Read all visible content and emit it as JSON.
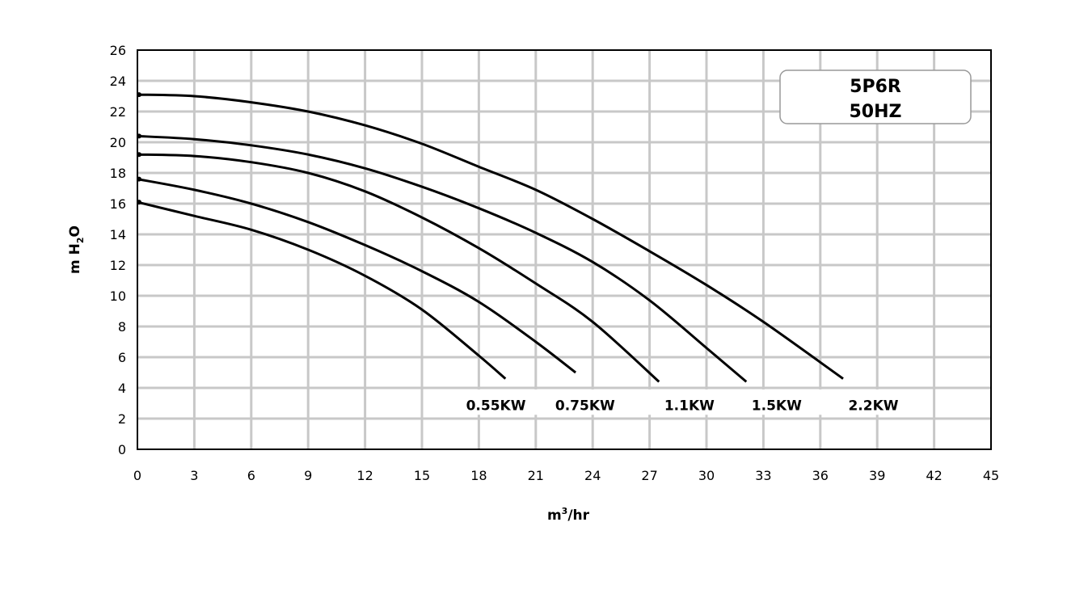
{
  "chart_data": {
    "type": "line",
    "title": "",
    "legend_box": [
      "5P6R",
      "50HZ"
    ],
    "legend_placement": "top-right",
    "xlabel_base": "m",
    "xlabel_sup": "3",
    "xlabel_rest": "/hr",
    "ylabel_base": "m H",
    "ylabel_sub": "2",
    "ylabel_rest": "O",
    "xlim": [
      0,
      45
    ],
    "ylim": [
      0,
      26
    ],
    "x_ticks": [
      0,
      3,
      6,
      9,
      12,
      15,
      18,
      21,
      24,
      27,
      30,
      33,
      36,
      39,
      42,
      45
    ],
    "y_ticks": [
      0,
      2,
      4,
      6,
      8,
      10,
      12,
      14,
      16,
      18,
      20,
      22,
      24,
      26
    ],
    "grid": true,
    "series": [
      {
        "name": "0.55KW",
        "x": [
          0,
          3,
          6,
          9,
          12,
          15,
          18,
          19.4
        ],
        "y": [
          16.1,
          15.2,
          14.3,
          13.0,
          11.3,
          9.1,
          6.1,
          4.6
        ]
      },
      {
        "name": "0.75KW",
        "x": [
          0,
          3,
          6,
          9,
          12,
          15,
          18,
          21,
          23.1
        ],
        "y": [
          17.6,
          16.9,
          16.0,
          14.8,
          13.3,
          11.6,
          9.6,
          7.0,
          5.0
        ]
      },
      {
        "name": "1.1KW",
        "x": [
          0,
          3,
          6,
          9,
          12,
          15,
          18,
          21,
          24,
          27.5
        ],
        "y": [
          19.2,
          19.1,
          18.7,
          18.0,
          16.8,
          15.1,
          13.1,
          10.8,
          8.3,
          4.4
        ]
      },
      {
        "name": "1.5KW",
        "x": [
          0,
          3,
          6,
          9,
          12,
          15,
          18,
          21,
          24,
          27,
          30,
          32.1
        ],
        "y": [
          20.4,
          20.2,
          19.8,
          19.2,
          18.3,
          17.1,
          15.7,
          14.1,
          12.2,
          9.7,
          6.6,
          4.4
        ]
      },
      {
        "name": "2.2KW",
        "x": [
          0,
          3,
          6,
          9,
          12,
          15,
          18,
          21,
          24,
          27,
          30,
          33,
          37.2
        ],
        "y": [
          23.1,
          23.0,
          22.6,
          22.0,
          21.1,
          19.9,
          18.4,
          16.9,
          15.0,
          12.9,
          10.7,
          8.3,
          4.6
        ]
      }
    ]
  }
}
